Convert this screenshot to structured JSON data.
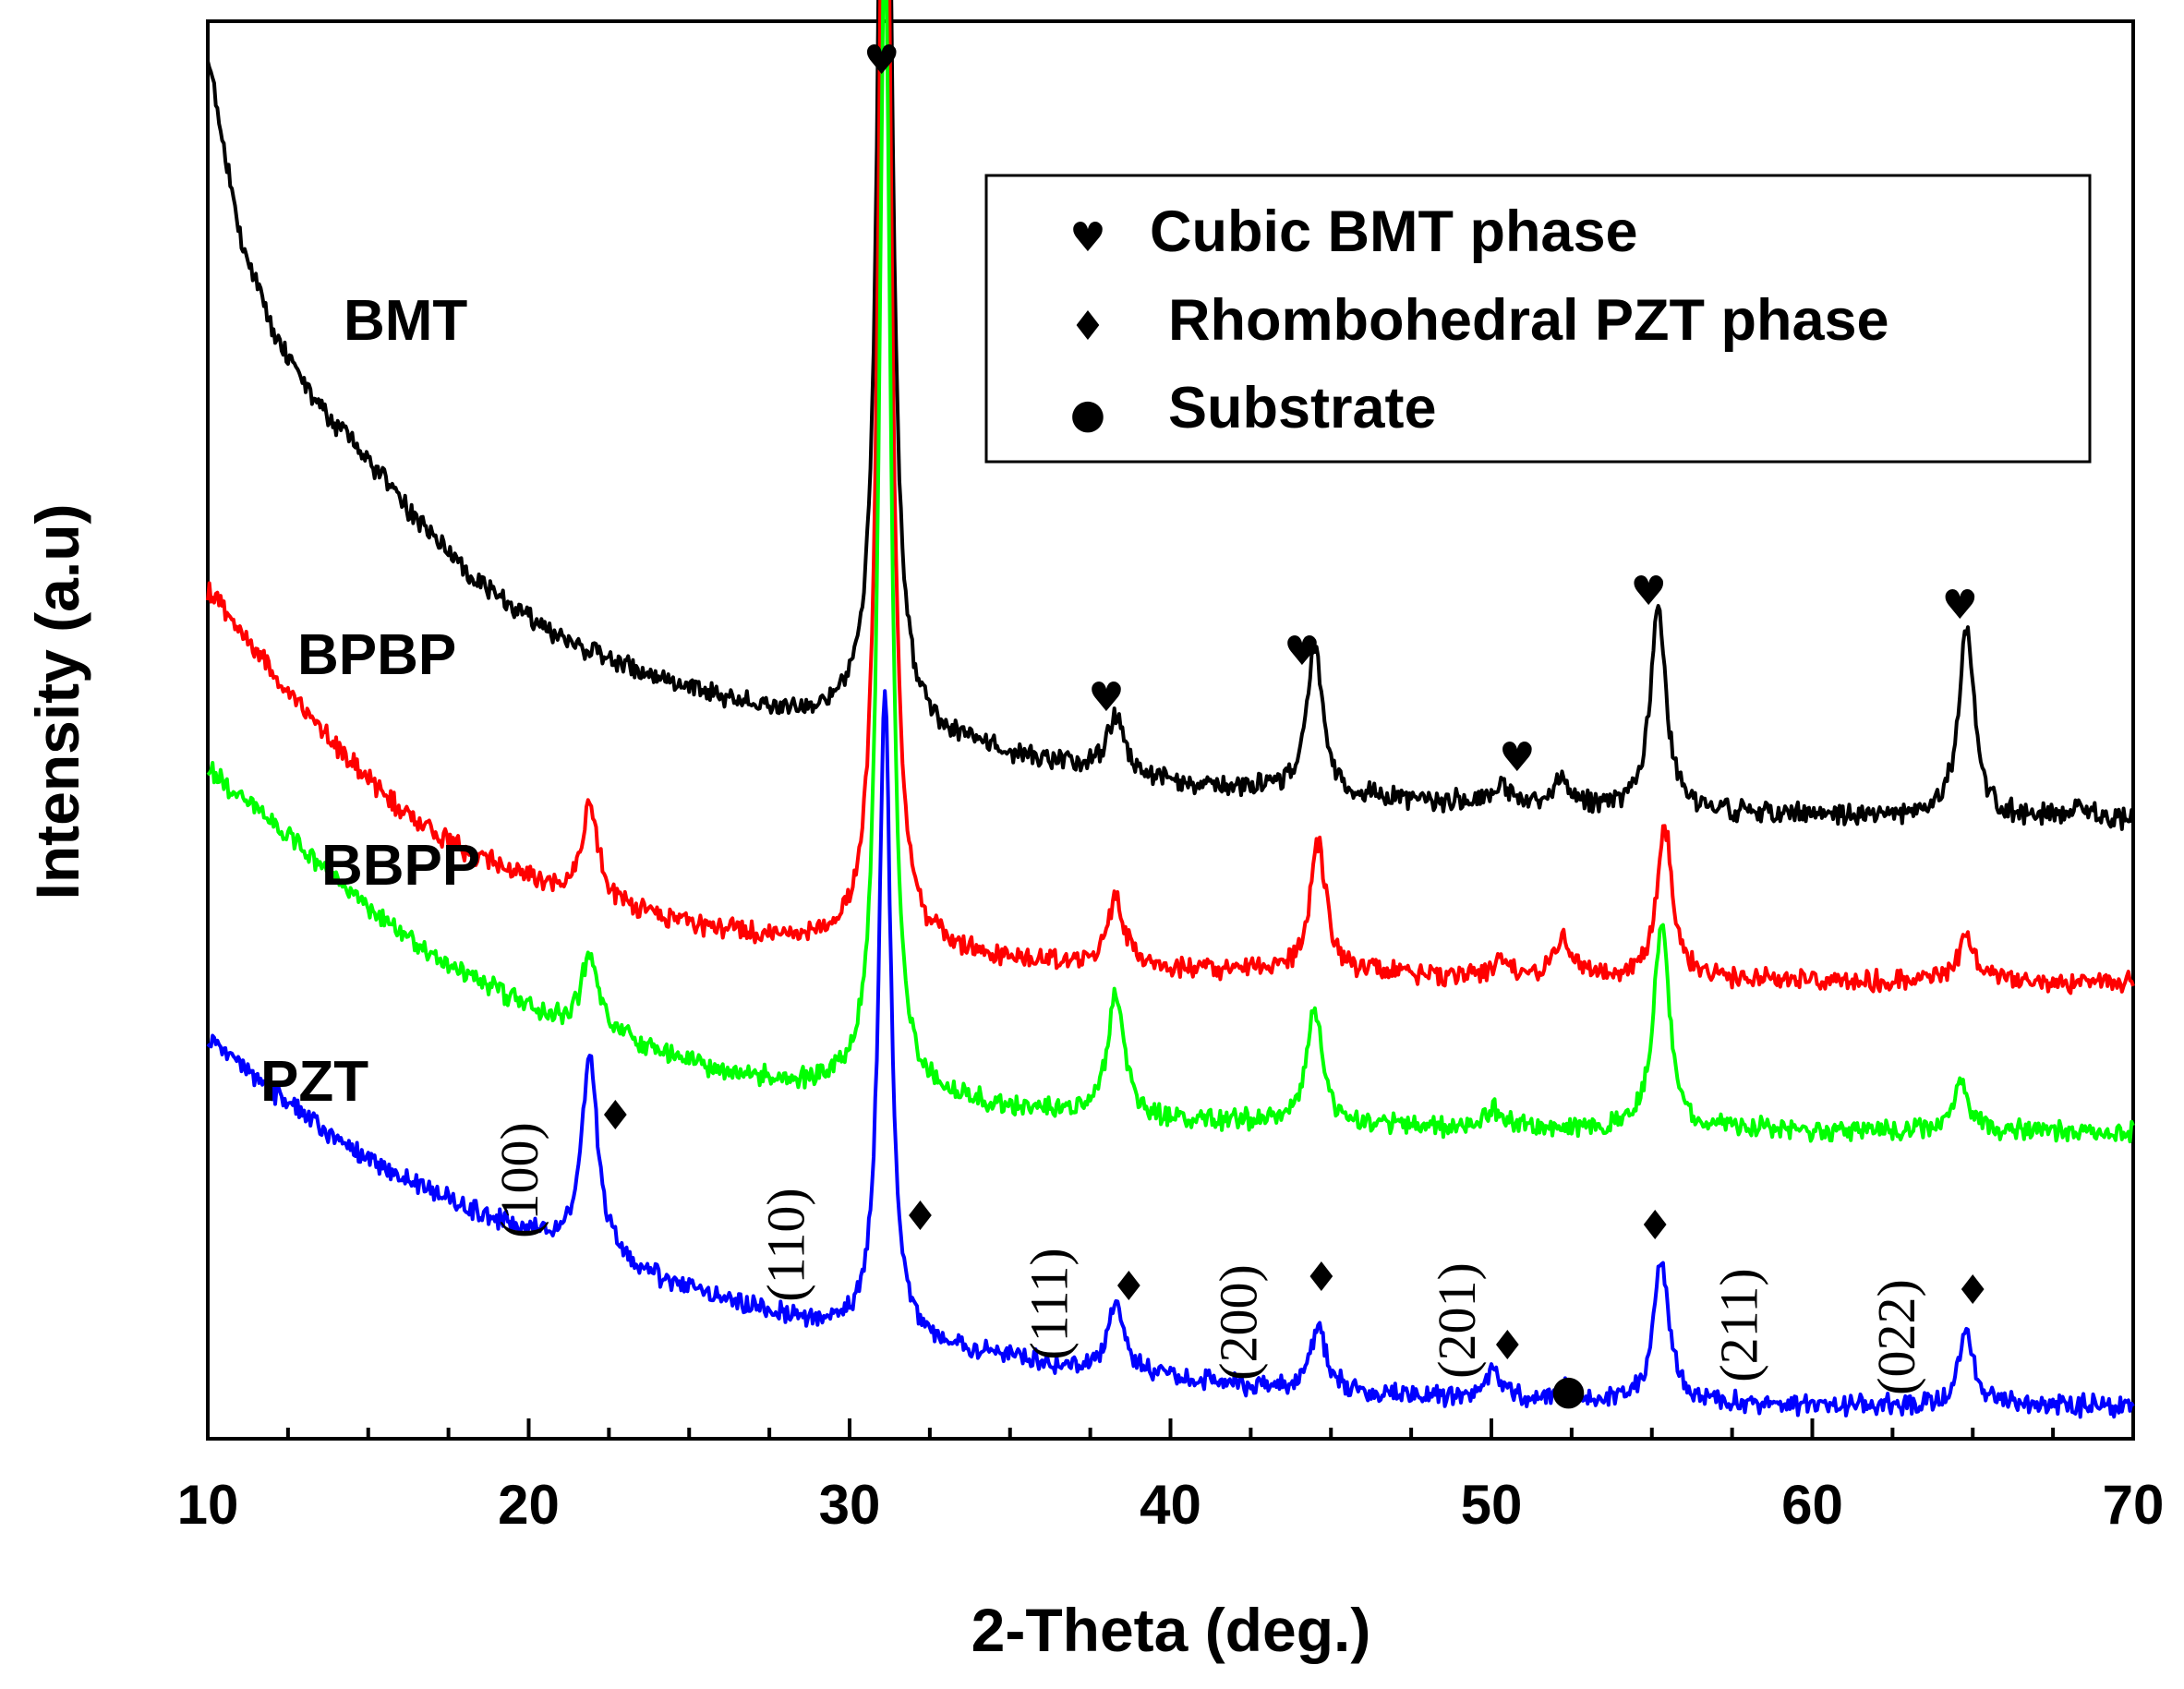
{
  "chart_data": {
    "type": "line",
    "xlabel": "2-Theta (deg.)",
    "ylabel": "Intensity (a.u)",
    "xlim": [
      10,
      70
    ],
    "xticks": [
      10,
      20,
      30,
      40,
      50,
      60,
      70
    ],
    "yticks_shown": false,
    "grid": false,
    "legend_position": "top-right",
    "legend": [
      {
        "symbol": "heart",
        "glyph": "♥",
        "label": "Cubic BMT phase"
      },
      {
        "symbol": "diamond",
        "glyph": "♦",
        "label": "Rhombohedral PZT phase"
      },
      {
        "symbol": "dot",
        "glyph": "●",
        "label": "Substrate"
      }
    ],
    "series": [
      {
        "name": "BMT",
        "color": "#000000",
        "background": [
          [
            10,
            1000
          ],
          [
            11,
            870
          ],
          [
            12,
            800
          ],
          [
            13,
            760
          ],
          [
            14,
            730
          ],
          [
            15,
            705
          ],
          [
            16,
            675
          ],
          [
            17,
            650
          ],
          [
            18,
            625
          ],
          [
            19,
            605
          ],
          [
            20,
            590
          ],
          [
            21,
            575
          ],
          [
            22,
            565
          ],
          [
            24,
            545
          ],
          [
            26,
            532
          ],
          [
            28,
            520
          ],
          [
            30,
            515
          ],
          [
            32,
            505
          ],
          [
            34,
            495
          ],
          [
            36,
            485
          ],
          [
            38,
            478
          ],
          [
            40,
            470
          ],
          [
            42,
            465
          ],
          [
            44,
            462
          ],
          [
            46,
            458
          ],
          [
            48,
            455
          ],
          [
            50,
            455
          ],
          [
            52,
            452
          ],
          [
            54,
            450
          ],
          [
            56,
            448
          ],
          [
            58,
            447
          ],
          [
            60,
            446
          ],
          [
            62,
            445
          ],
          [
            64,
            445
          ],
          [
            66,
            444
          ],
          [
            68,
            443
          ],
          [
            70,
            443
          ]
        ],
        "peaks": [
          {
            "two_theta": 31.1,
            "intensity": 980
          },
          {
            "two_theta": 38.3,
            "intensity": 42
          },
          {
            "two_theta": 44.5,
            "intensity": 110
          },
          {
            "two_theta": 50.3,
            "intensity": 12
          },
          {
            "two_theta": 52.2,
            "intensity": 18
          },
          {
            "two_theta": 55.2,
            "intensity": 145
          },
          {
            "two_theta": 64.8,
            "intensity": 135
          },
          {
            "two_theta": 68.3,
            "intensity": 10
          }
        ]
      },
      {
        "name": "BPBP",
        "color": "#ff0000",
        "background": [
          [
            10,
            610
          ],
          [
            12,
            550
          ],
          [
            14,
            495
          ],
          [
            16,
            450
          ],
          [
            18,
            420
          ],
          [
            20,
            400
          ],
          [
            21,
            390
          ],
          [
            22,
            385
          ],
          [
            24,
            370
          ],
          [
            26,
            362
          ],
          [
            28,
            355
          ],
          [
            30,
            352
          ],
          [
            32,
            348
          ],
          [
            34,
            342
          ],
          [
            36,
            338
          ],
          [
            38,
            336
          ],
          [
            40,
            333
          ],
          [
            42,
            332
          ],
          [
            44,
            330
          ],
          [
            46,
            330
          ],
          [
            48,
            329
          ],
          [
            50,
            328
          ],
          [
            52,
            327
          ],
          [
            54,
            327
          ],
          [
            56,
            326
          ],
          [
            58,
            326
          ],
          [
            60,
            325
          ],
          [
            62,
            325
          ],
          [
            64,
            325
          ],
          [
            66,
            324
          ],
          [
            68,
            324
          ],
          [
            70,
            324
          ]
        ],
        "peaks": [
          {
            "two_theta": 21.9,
            "intensity": 70
          },
          {
            "two_theta": 31.1,
            "intensity": 990
          },
          {
            "two_theta": 38.3,
            "intensity": 50
          },
          {
            "two_theta": 44.6,
            "intensity": 95
          },
          {
            "two_theta": 50.3,
            "intensity": 12
          },
          {
            "two_theta": 52.2,
            "intensity": 30
          },
          {
            "two_theta": 55.4,
            "intensity": 110
          },
          {
            "two_theta": 64.8,
            "intensity": 35
          }
        ]
      },
      {
        "name": "BBPP",
        "color": "#00ff00",
        "background": [
          [
            10,
            480
          ],
          [
            12,
            440
          ],
          [
            14,
            400
          ],
          [
            16,
            360
          ],
          [
            18,
            330
          ],
          [
            20,
            305
          ],
          [
            21,
            295
          ],
          [
            22,
            290
          ],
          [
            24,
            272
          ],
          [
            26,
            258
          ],
          [
            28,
            250
          ],
          [
            30,
            245
          ],
          [
            32,
            240
          ],
          [
            34,
            234
          ],
          [
            36,
            230
          ],
          [
            38,
            226
          ],
          [
            40,
            223
          ],
          [
            42,
            222
          ],
          [
            44,
            220
          ],
          [
            46,
            219
          ],
          [
            48,
            218
          ],
          [
            50,
            218
          ],
          [
            52,
            217
          ],
          [
            54,
            217
          ],
          [
            56,
            216
          ],
          [
            58,
            216
          ],
          [
            60,
            215
          ],
          [
            62,
            215
          ],
          [
            64,
            215
          ],
          [
            66,
            215
          ],
          [
            68,
            215
          ],
          [
            70,
            215
          ]
        ],
        "peaks": [
          {
            "two_theta": 21.9,
            "intensity": 55
          },
          {
            "two_theta": 31.1,
            "intensity": 850
          },
          {
            "two_theta": 38.3,
            "intensity": 90
          },
          {
            "two_theta": 44.5,
            "intensity": 85
          },
          {
            "two_theta": 50.1,
            "intensity": 12
          },
          {
            "two_theta": 55.3,
            "intensity": 150
          },
          {
            "two_theta": 64.6,
            "intensity": 35
          }
        ]
      },
      {
        "name": "PZT",
        "color": "#0000ff",
        "background": [
          [
            10,
            285
          ],
          [
            12,
            245
          ],
          [
            14,
            210
          ],
          [
            16,
            182
          ],
          [
            18,
            160
          ],
          [
            20,
            140
          ],
          [
            21,
            132
          ],
          [
            22,
            126
          ],
          [
            24,
            108
          ],
          [
            26,
            93
          ],
          [
            28,
            80
          ],
          [
            30,
            72
          ],
          [
            32,
            62
          ],
          [
            34,
            53
          ],
          [
            36,
            46
          ],
          [
            38,
            40
          ],
          [
            40,
            35
          ],
          [
            42,
            30
          ],
          [
            44,
            27
          ],
          [
            46,
            24
          ],
          [
            48,
            22
          ],
          [
            50,
            20
          ],
          [
            52,
            19
          ],
          [
            54,
            18
          ],
          [
            56,
            17
          ],
          [
            58,
            16
          ],
          [
            60,
            16
          ],
          [
            62,
            15
          ],
          [
            64,
            15
          ],
          [
            66,
            15
          ],
          [
            68,
            15
          ],
          [
            70,
            15
          ]
        ],
        "peaks": [
          {
            "two_theta": 21.9,
            "intensity": 145
          },
          {
            "two_theta": 31.1,
            "intensity": 470
          },
          {
            "two_theta": 38.3,
            "intensity": 50
          },
          {
            "two_theta": 44.6,
            "intensity": 45
          },
          {
            "two_theta": 50.1,
            "intensity": 20
          },
          {
            "two_theta": 52.3,
            "intensity": 8
          },
          {
            "two_theta": 55.3,
            "intensity": 102
          },
          {
            "two_theta": 64.8,
            "intensity": 53
          }
        ]
      }
    ],
    "series_labels": [
      {
        "text": "BMT",
        "series": "BMT"
      },
      {
        "text": "BPBP",
        "series": "BPBP"
      },
      {
        "text": "BBPP",
        "series": "BBPP"
      },
      {
        "text": "PZT",
        "series": "PZT"
      }
    ],
    "annotations": {
      "hkl_labels": [
        {
          "text": "(100)",
          "two_theta": 19.7
        },
        {
          "text": "(110)",
          "two_theta": 28.0
        },
        {
          "text": "(111)",
          "two_theta": 36.2
        },
        {
          "text": "(200)",
          "two_theta": 42.1
        },
        {
          "text": "(201)",
          "two_theta": 48.9
        },
        {
          "text": "(211)",
          "two_theta": 57.7
        },
        {
          "text": "(022)",
          "two_theta": 62.6
        }
      ],
      "bmt_markers": [
        {
          "glyph": "♥",
          "two_theta": 31.0
        },
        {
          "glyph": "♥",
          "two_theta": 38.0
        },
        {
          "glyph": "♥",
          "two_theta": 44.1
        },
        {
          "glyph": "♥",
          "two_theta": 50.8
        },
        {
          "glyph": "♥",
          "two_theta": 54.9
        },
        {
          "glyph": "♥",
          "two_theta": 64.6
        }
      ],
      "pzt_markers": [
        {
          "glyph": "♦",
          "two_theta": 22.7
        },
        {
          "glyph": "♦",
          "two_theta": 32.2
        },
        {
          "glyph": "♦",
          "two_theta": 38.7
        },
        {
          "glyph": "♦",
          "two_theta": 44.7
        },
        {
          "glyph": "♦",
          "two_theta": 50.5
        },
        {
          "glyph": "♦",
          "two_theta": 55.1
        },
        {
          "glyph": "♦",
          "two_theta": 65.0
        }
      ],
      "substrate_markers": [
        {
          "glyph": "●",
          "two_theta": 52.4
        }
      ]
    }
  }
}
